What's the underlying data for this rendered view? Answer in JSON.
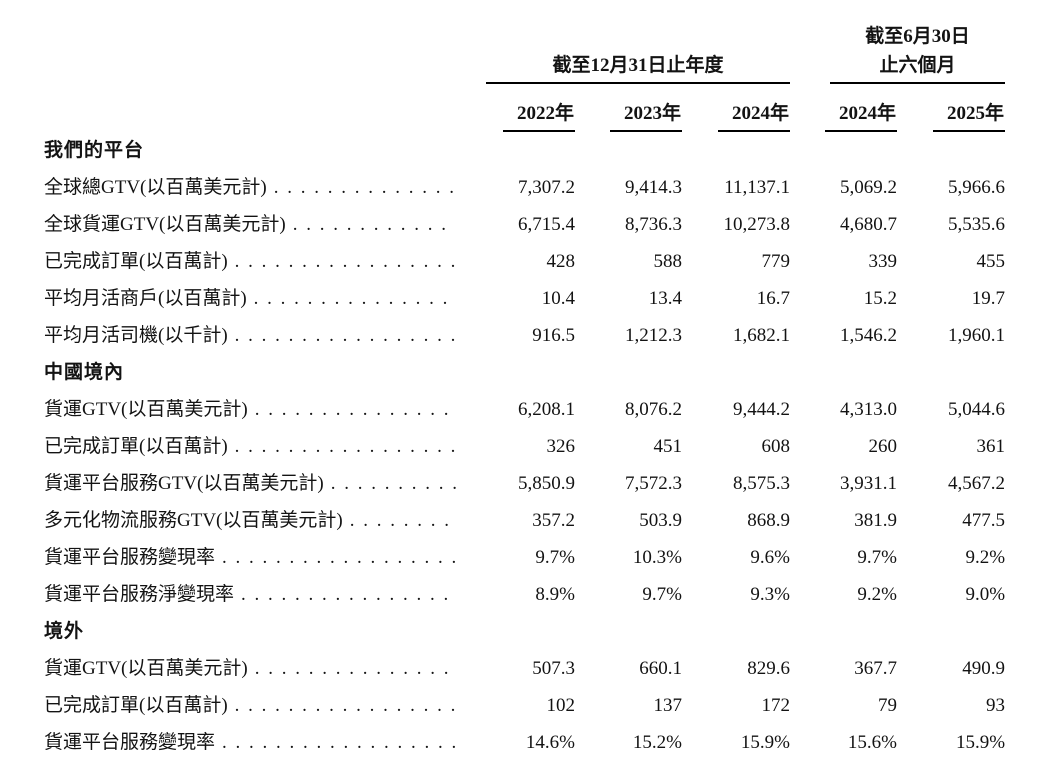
{
  "header": {
    "group1": {
      "title": "截至12月31日止年度"
    },
    "group2": {
      "line1": "截至6月30日",
      "line2": "止六個月"
    },
    "years": [
      "2022年",
      "2023年",
      "2024年",
      "2024年",
      "2025年"
    ]
  },
  "dot_leader": ". . . . . . . . . . . . . . . . . . . . . . . . . . . . . . . . . . . . . . . . . . . . .",
  "sections": [
    {
      "title": "我們的平台",
      "rows": [
        {
          "label": "全球總GTV(以百萬美元計)",
          "values": [
            "7,307.2",
            "9,414.3",
            "11,137.1",
            "5,069.2",
            "5,966.6"
          ]
        },
        {
          "label": "全球貨運GTV(以百萬美元計)",
          "values": [
            "6,715.4",
            "8,736.3",
            "10,273.8",
            "4,680.7",
            "5,535.6"
          ]
        },
        {
          "label": "已完成訂單(以百萬計)",
          "values": [
            "428",
            "588",
            "779",
            "339",
            "455"
          ]
        },
        {
          "label": "平均月活商戶(以百萬計)",
          "values": [
            "10.4",
            "13.4",
            "16.7",
            "15.2",
            "19.7"
          ]
        },
        {
          "label": "平均月活司機(以千計)",
          "values": [
            "916.5",
            "1,212.3",
            "1,682.1",
            "1,546.2",
            "1,960.1"
          ]
        }
      ]
    },
    {
      "title": "中國境內",
      "rows": [
        {
          "label": "貨運GTV(以百萬美元計)",
          "values": [
            "6,208.1",
            "8,076.2",
            "9,444.2",
            "4,313.0",
            "5,044.6"
          ]
        },
        {
          "label": "已完成訂單(以百萬計)",
          "values": [
            "326",
            "451",
            "608",
            "260",
            "361"
          ]
        },
        {
          "label": "貨運平台服務GTV(以百萬美元計)",
          "values": [
            "5,850.9",
            "7,572.3",
            "8,575.3",
            "3,931.1",
            "4,567.2"
          ]
        },
        {
          "label": "多元化物流服務GTV(以百萬美元計)",
          "values": [
            "357.2",
            "503.9",
            "868.9",
            "381.9",
            "477.5"
          ]
        },
        {
          "label": "貨運平台服務變現率",
          "values": [
            "9.7%",
            "10.3%",
            "9.6%",
            "9.7%",
            "9.2%"
          ]
        },
        {
          "label": "貨運平台服務淨變現率",
          "values": [
            "8.9%",
            "9.7%",
            "9.3%",
            "9.2%",
            "9.0%"
          ]
        }
      ]
    },
    {
      "title": "境外",
      "rows": [
        {
          "label": "貨運GTV(以百萬美元計)",
          "values": [
            "507.3",
            "660.1",
            "829.6",
            "367.7",
            "490.9"
          ]
        },
        {
          "label": "已完成訂單(以百萬計)",
          "values": [
            "102",
            "137",
            "172",
            "79",
            "93"
          ]
        },
        {
          "label": "貨運平台服務變現率",
          "values": [
            "14.6%",
            "15.2%",
            "15.9%",
            "15.6%",
            "15.9%"
          ]
        }
      ]
    }
  ]
}
